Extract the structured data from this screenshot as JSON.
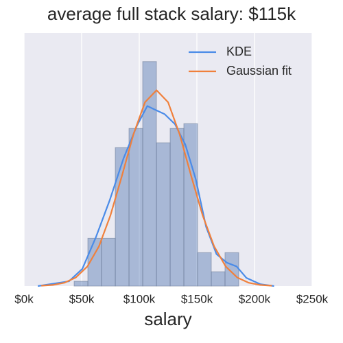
{
  "chart_data": {
    "type": "histogram",
    "title": "average full stack salary: $115k",
    "x_label": "salary",
    "bins": [
      43.5,
      55.4,
      67.3,
      79.2,
      91.1,
      103,
      114.9,
      126.8,
      138.7,
      150.6,
      162.5,
      174.4,
      186.3
    ],
    "values": [
      1,
      10,
      10,
      29,
      33,
      47,
      30,
      33,
      34,
      7,
      3,
      7
    ],
    "color": "#4c72b0",
    "lines": [
      {
        "name": "KDE",
        "color": "#4a8be8",
        "x": [
          12,
          39,
          50.6,
          62.5,
          74.4,
          86.3,
          98,
          107,
          113,
          122,
          131,
          140,
          149,
          158,
          167,
          176,
          184.5,
          193,
          205,
          217
        ],
        "values": [
          0,
          1,
          3.6,
          10.3,
          18,
          26.7,
          33.6,
          37.7,
          37,
          36,
          33.9,
          29.6,
          22.4,
          12.4,
          6.7,
          4.9,
          4.1,
          1.7,
          0.4,
          0
        ]
      },
      {
        "name": "Gaussian fit",
        "color": "#f0803c",
        "x": [
          15,
          25,
          35,
          45,
          55,
          65,
          75,
          85,
          95,
          105,
          115,
          125,
          135,
          145,
          155,
          165,
          175,
          185,
          195,
          205,
          215
        ],
        "values": [
          0.07,
          0.23,
          0.69,
          1.8,
          4.1,
          8.3,
          14.8,
          23.1,
          31.8,
          38.5,
          41,
          38.5,
          31.8,
          23.1,
          14.8,
          8.3,
          4.1,
          1.8,
          0.69,
          0.23,
          0.07
        ]
      }
    ],
    "xlim": [
      0,
      250
    ],
    "xticks": [
      {
        "value": 0,
        "label": "$0k"
      },
      {
        "value": 50,
        "label": "$50k"
      },
      {
        "value": 100,
        "label": "$100k"
      },
      {
        "value": 150,
        "label": "$150k"
      },
      {
        "value": 200,
        "label": "$200k"
      },
      {
        "value": 250,
        "label": "$250k"
      }
    ],
    "ylim": [
      0,
      53
    ],
    "grid": true,
    "legend": "upper right"
  }
}
